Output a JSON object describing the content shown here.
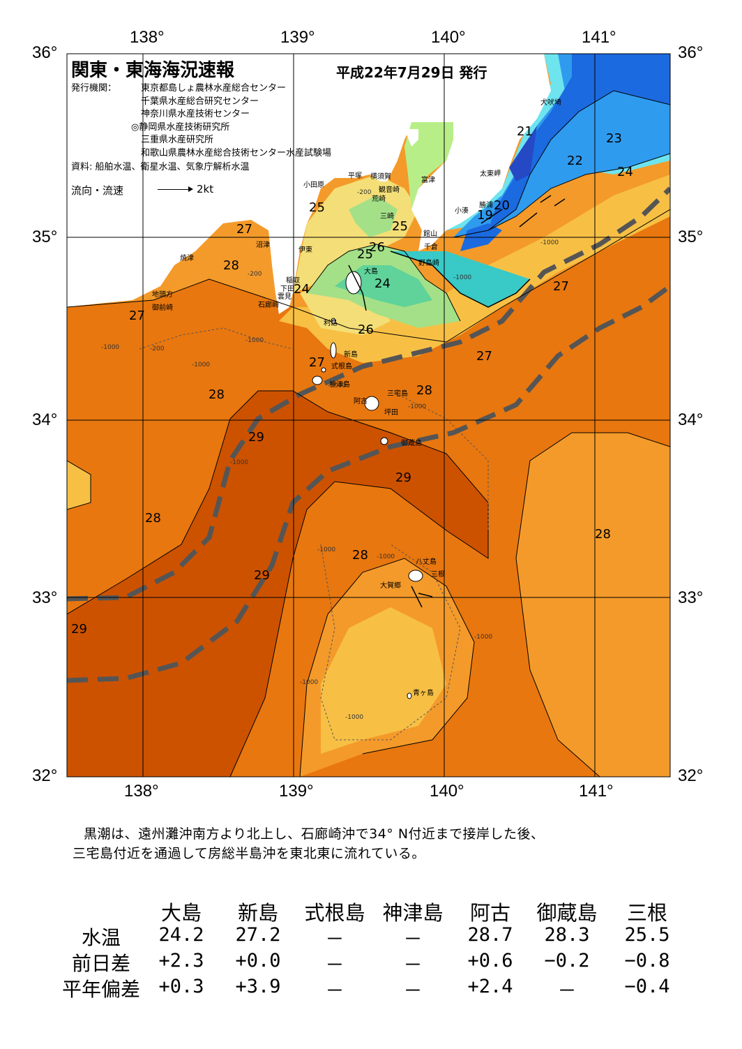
{
  "header": {
    "title": "関東・東海海況速報",
    "date": "平成22年7月29日 発行",
    "issuer_label": "発行機関：",
    "issuers": [
      "東京都島しょ農林水産総合センター",
      "千葉県水産総合研究センター",
      "神奈川県水産技術センター",
      "◎静岡県水産技術研究所",
      "三重県水産研究所",
      "和歌山県農林水産総合技術センター水産試験場"
    ],
    "source": "資料: 船舶水温、衛星水温、気象庁解析水温",
    "flow_label": "流向・流速",
    "flow_unit": "2kt"
  },
  "axes": {
    "lon_labels": [
      "138°",
      "139°",
      "140°",
      "141°"
    ],
    "lat_labels": [
      "36°",
      "35°",
      "34°",
      "33°",
      "32°"
    ]
  },
  "places": [
    {
      "name": "犬吠埼"
    },
    {
      "name": "太東岬"
    },
    {
      "name": "勝浦"
    },
    {
      "name": "小湊"
    },
    {
      "name": "富津"
    },
    {
      "name": "館山"
    },
    {
      "name": "千倉"
    },
    {
      "name": "野島崎"
    },
    {
      "name": "横須賀"
    },
    {
      "name": "観音崎"
    },
    {
      "name": "平塚"
    },
    {
      "name": "荒崎"
    },
    {
      "name": "三崎"
    },
    {
      "name": "小田原"
    },
    {
      "name": "伊東"
    },
    {
      "name": "沼津"
    },
    {
      "name": "焼津"
    },
    {
      "name": "稲取"
    },
    {
      "name": "下田"
    },
    {
      "name": "雲見"
    },
    {
      "name": "石廊崎"
    },
    {
      "name": "地頭方"
    },
    {
      "name": "御前崎"
    },
    {
      "name": "大島"
    },
    {
      "name": "利島"
    },
    {
      "name": "新島"
    },
    {
      "name": "式根島"
    },
    {
      "name": "神津島"
    },
    {
      "name": "三宅島"
    },
    {
      "name": "阿古"
    },
    {
      "name": "坪田"
    },
    {
      "name": "御蔵島"
    },
    {
      "name": "八丈島"
    },
    {
      "name": "三根"
    },
    {
      "name": "大賀郷"
    },
    {
      "name": "青ヶ島"
    }
  ],
  "isotherm_labels": [
    "21",
    "23",
    "22",
    "24",
    "20",
    "19",
    "25",
    "25",
    "25",
    "26",
    "27",
    "28",
    "24",
    "24",
    "27",
    "26",
    "27",
    "27",
    "28",
    "28",
    "29",
    "29",
    "28",
    "28",
    "28",
    "29",
    "29"
  ],
  "depth_labels": [
    "-200",
    "-200",
    "-1000",
    "-1000",
    "-200",
    "-1000",
    "-1000",
    "-1000",
    "-1000",
    "-1000",
    "-1000",
    "-1000",
    "-1000",
    "-1000",
    "-1000",
    "-1000"
  ],
  "description": {
    "line1": "黒潮は、遠州灘沖南方より北上し、石廊崎沖で34° N付近まで接岸した後、",
    "line2": "三宅島付近を通過して房総半島沖を東北東に流れている。"
  },
  "table": {
    "columns": [
      "大島",
      "新島",
      "式根島",
      "神津島",
      "阿古",
      "御蔵島",
      "三根"
    ],
    "rows": [
      {
        "label": "水温",
        "values": [
          "24.2",
          "27.2",
          "－",
          "－",
          "28.7",
          "28.3",
          "25.5"
        ]
      },
      {
        "label": "前日差",
        "values": [
          "+2.3",
          "+0.0",
          "－",
          "－",
          "+0.6",
          "−0.2",
          "−0.8"
        ]
      },
      {
        "label": "平年偏差",
        "values": [
          "+0.3",
          "+3.9",
          "－",
          "－",
          "+2.4",
          "－",
          "−0.4"
        ]
      }
    ]
  },
  "colors": {
    "c29": "#cc5200",
    "c28": "#e8770f",
    "c27": "#f49a2a",
    "c26": "#f7c045",
    "c25": "#f4de77",
    "c24": "#d8ec7c",
    "c23": "#a4e088",
    "c22": "#5fd39a",
    "c21": "#39c9c6",
    "c20": "#6ee4ef",
    "c19": "#2f9bef",
    "c18": "#1b6adf",
    "c17": "#2549c5",
    "land": "#ffffff",
    "kuroshio": "#555555"
  }
}
